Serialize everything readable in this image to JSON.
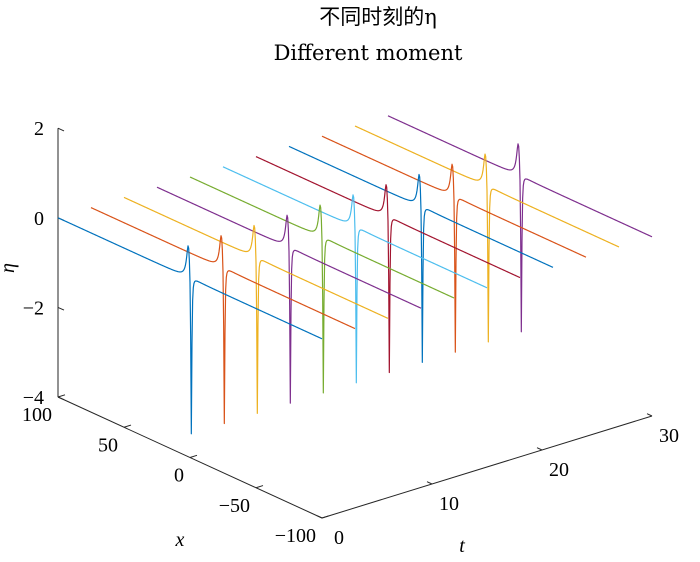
{
  "chart_data": {
    "type": "line",
    "title": "不同时刻的η",
    "subtitle": "Different moment",
    "xlabel": "t",
    "ylabel": "x",
    "zlabel": "η",
    "t_ticks": [
      0,
      10,
      20,
      30
    ],
    "x_ticks": [
      100,
      50,
      0,
      -50,
      -100
    ],
    "z_ticks": [
      2,
      0,
      -2,
      -4
    ],
    "t_range": [
      0,
      30
    ],
    "x_range": [
      -100,
      100
    ],
    "z_range": [
      -4,
      2
    ],
    "series": [
      {
        "t": 0,
        "peak": 0.85,
        "trough": -3.75,
        "color": "#0072BD"
      },
      {
        "t": 3,
        "peak": 0.85,
        "trough": -3.75,
        "color": "#D95319"
      },
      {
        "t": 6,
        "peak": 0.85,
        "trough": -3.75,
        "color": "#EDB120"
      },
      {
        "t": 9,
        "peak": 0.85,
        "trough": -3.75,
        "color": "#7E2F8E"
      },
      {
        "t": 12,
        "peak": 0.85,
        "trough": -3.75,
        "color": "#77AC30"
      },
      {
        "t": 15,
        "peak": 0.85,
        "trough": -3.75,
        "color": "#4DBEEE"
      },
      {
        "t": 18,
        "peak": 0.85,
        "trough": -3.75,
        "color": "#A2142F"
      },
      {
        "t": 21,
        "peak": 0.85,
        "trough": -3.75,
        "color": "#0072BD"
      },
      {
        "t": 24,
        "peak": 0.85,
        "trough": -3.75,
        "color": "#D95319"
      },
      {
        "t": 27,
        "peak": 0.85,
        "trough": -3.75,
        "color": "#EDB120"
      },
      {
        "t": 30,
        "peak": 0.85,
        "trough": -3.75,
        "color": "#7E2F8E"
      }
    ]
  }
}
